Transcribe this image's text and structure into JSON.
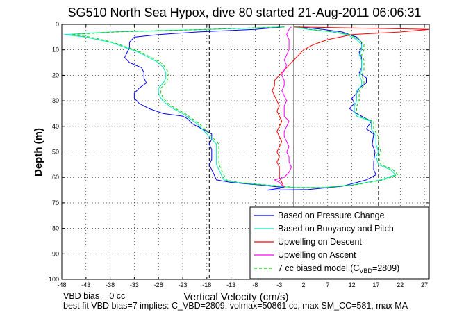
{
  "chart_data": {
    "type": "line",
    "title": "SG510 North Sea Hypox, dive 80 started 21-Aug-2011 06:06:31",
    "xlabel": "Vertical Velocity (cm/s)",
    "ylabel": "Depth (m)",
    "xlim": [
      -48,
      28
    ],
    "ylim": [
      0,
      100
    ],
    "y_reversed": true,
    "grid": true,
    "x_ticks": [
      -48,
      -43,
      -38,
      -33,
      -28,
      -23,
      -18,
      -13,
      -8,
      -3,
      2,
      7,
      12,
      17,
      22,
      27
    ],
    "y_ticks": [
      0,
      10,
      20,
      30,
      40,
      50,
      60,
      70,
      80,
      90,
      100
    ],
    "legend_position": "bottom-right",
    "reference_lines": [
      {
        "x": -17.5,
        "style": "dashed",
        "color": "#000000"
      },
      {
        "x": 0,
        "style": "solid",
        "color": "#000000"
      },
      {
        "x": 17.5,
        "style": "dashed",
        "color": "#000000"
      }
    ],
    "series": [
      {
        "name": "Based on Pressure Change",
        "color": "#0000ff",
        "style": "solid",
        "points": [
          [
            -2,
            1
          ],
          [
            -8,
            2
          ],
          [
            -20,
            3
          ],
          [
            -28,
            4
          ],
          [
            -33,
            5
          ],
          [
            -34,
            7
          ],
          [
            -34,
            9
          ],
          [
            -34.5,
            11
          ],
          [
            -35,
            13
          ],
          [
            -34,
            15
          ],
          [
            -31.5,
            17
          ],
          [
            -31,
            19
          ],
          [
            -31,
            21
          ],
          [
            -30.5,
            23
          ],
          [
            -32,
            25
          ],
          [
            -33,
            27
          ],
          [
            -33,
            29
          ],
          [
            -32,
            31
          ],
          [
            -30,
            33
          ],
          [
            -27,
            35
          ],
          [
            -23,
            36
          ],
          [
            -22,
            37
          ],
          [
            -21.5,
            38
          ],
          [
            -21,
            39
          ],
          [
            -20,
            40
          ],
          [
            -19,
            41
          ],
          [
            -18,
            42
          ],
          [
            -17,
            43
          ],
          [
            -17,
            45
          ],
          [
            -17.5,
            47
          ],
          [
            -17,
            49
          ],
          [
            -17,
            51
          ],
          [
            -17,
            53
          ],
          [
            -17.5,
            55
          ],
          [
            -17,
            57
          ],
          [
            -16.5,
            59
          ],
          [
            -16,
            61
          ],
          [
            -13,
            62
          ],
          [
            -7,
            63
          ],
          [
            -2,
            64
          ],
          [
            -5.5,
            65
          ],
          [
            3,
            64.8
          ],
          [
            10,
            63.5
          ],
          [
            15,
            61
          ],
          [
            17,
            59
          ],
          [
            16.5,
            57
          ],
          [
            16.5,
            54
          ],
          [
            16.8,
            50
          ],
          [
            16.2,
            47
          ],
          [
            16.5,
            43
          ],
          [
            15,
            41
          ],
          [
            16,
            38
          ],
          [
            13,
            35
          ],
          [
            11.5,
            33
          ],
          [
            12.5,
            31
          ],
          [
            12,
            29
          ],
          [
            13,
            27
          ],
          [
            13.5,
            25
          ],
          [
            15,
            23
          ],
          [
            15,
            21
          ],
          [
            13.5,
            19
          ],
          [
            14,
            17
          ],
          [
            14,
            15
          ],
          [
            14,
            13
          ],
          [
            13.5,
            11
          ],
          [
            14,
            9
          ],
          [
            14,
            7
          ],
          [
            13,
            5
          ],
          [
            10,
            3
          ],
          [
            6,
            2
          ],
          [
            1,
            1
          ]
        ]
      },
      {
        "name": "Based on Buoyancy and Pitch",
        "color": "#00e8c0",
        "style": "solid",
        "points": [
          [
            -2,
            1
          ],
          [
            -18,
            2
          ],
          [
            -38,
            3
          ],
          [
            -47.5,
            4
          ],
          [
            -43,
            5
          ],
          [
            -38,
            7
          ],
          [
            -35,
            9
          ],
          [
            -32,
            11
          ],
          [
            -30,
            13
          ],
          [
            -28,
            15
          ],
          [
            -27,
            17
          ],
          [
            -26.5,
            19
          ],
          [
            -26.5,
            21
          ],
          [
            -27,
            23
          ],
          [
            -28,
            25
          ],
          [
            -28,
            27
          ],
          [
            -27.5,
            29
          ],
          [
            -26.5,
            31
          ],
          [
            -25,
            33
          ],
          [
            -23,
            35
          ],
          [
            -21.5,
            37
          ],
          [
            -20,
            39
          ],
          [
            -19,
            41
          ],
          [
            -18,
            43
          ],
          [
            -17,
            45
          ],
          [
            -16,
            47
          ],
          [
            -16,
            49
          ],
          [
            -16,
            51
          ],
          [
            -16,
            53
          ],
          [
            -16,
            55
          ],
          [
            -15.5,
            57
          ],
          [
            -15,
            59
          ],
          [
            -14.5,
            61
          ],
          [
            -12,
            62
          ],
          [
            -6,
            63
          ],
          [
            0,
            64
          ],
          [
            6,
            64
          ],
          [
            12,
            63
          ],
          [
            18,
            61
          ],
          [
            21,
            59
          ],
          [
            20,
            57
          ],
          [
            17.5,
            55
          ],
          [
            17,
            52
          ],
          [
            17.5,
            50
          ],
          [
            17,
            47
          ],
          [
            17,
            44
          ],
          [
            16,
            41
          ],
          [
            16,
            38
          ],
          [
            13,
            36
          ],
          [
            12.5,
            34
          ],
          [
            12.5,
            32
          ],
          [
            13,
            30
          ],
          [
            13,
            28
          ],
          [
            13,
            26
          ],
          [
            14,
            24
          ],
          [
            14,
            22
          ],
          [
            13.5,
            20
          ],
          [
            14,
            18
          ],
          [
            14,
            16
          ],
          [
            14,
            14
          ],
          [
            13.5,
            12
          ],
          [
            14,
            10
          ],
          [
            14,
            8
          ],
          [
            13,
            6
          ],
          [
            11,
            4
          ],
          [
            8,
            3
          ],
          [
            3,
            2
          ],
          [
            0,
            1
          ]
        ]
      },
      {
        "name": "Upwelling on Descent",
        "color": "#ff0000",
        "style": "solid",
        "points": [
          [
            0,
            1
          ],
          [
            28,
            2
          ],
          [
            22,
            3
          ],
          [
            12,
            4
          ],
          [
            7,
            6
          ],
          [
            4,
            8
          ],
          [
            2,
            10
          ],
          [
            1,
            12
          ],
          [
            0,
            14
          ],
          [
            -1,
            16
          ],
          [
            -2,
            18
          ],
          [
            -3,
            20
          ],
          [
            -4,
            22
          ],
          [
            -4,
            24
          ],
          [
            -4.5,
            26
          ],
          [
            -4,
            28
          ],
          [
            -3.5,
            30
          ],
          [
            -3,
            32
          ],
          [
            -3.5,
            34
          ],
          [
            -3,
            36
          ],
          [
            -2.5,
            38
          ],
          [
            -3,
            40
          ],
          [
            -3.5,
            42
          ],
          [
            -3,
            44
          ],
          [
            -2.5,
            46
          ],
          [
            -3,
            48
          ],
          [
            -3.5,
            50
          ],
          [
            -3,
            52
          ],
          [
            -3.5,
            54
          ],
          [
            -3,
            56
          ],
          [
            -3,
            58
          ],
          [
            -3,
            60
          ],
          [
            -2.5,
            62
          ],
          [
            -2,
            64
          ]
        ]
      },
      {
        "name": "Upwelling on Ascent",
        "color": "#ff00ff",
        "style": "solid",
        "points": [
          [
            -2,
            64
          ],
          [
            -3,
            62
          ],
          [
            -4,
            61
          ],
          [
            -2,
            60
          ],
          [
            -1,
            58
          ],
          [
            -0.5,
            56
          ],
          [
            -1,
            54
          ],
          [
            -1,
            52
          ],
          [
            -1.5,
            50
          ],
          [
            -1,
            48
          ],
          [
            -1.5,
            46
          ],
          [
            -2,
            44
          ],
          [
            -2,
            42
          ],
          [
            -1.5,
            40
          ],
          [
            -1,
            38
          ],
          [
            -2,
            36
          ],
          [
            -2,
            34
          ],
          [
            -2,
            32
          ],
          [
            -1.5,
            30
          ],
          [
            -2,
            28
          ],
          [
            -2.5,
            26
          ],
          [
            -2,
            24
          ],
          [
            -2,
            22
          ],
          [
            -2.5,
            20
          ],
          [
            -2,
            18
          ],
          [
            -1.5,
            16
          ],
          [
            -2,
            14
          ],
          [
            -1.5,
            12
          ],
          [
            -1,
            10
          ],
          [
            -1,
            8
          ],
          [
            -1,
            6
          ],
          [
            -1.5,
            4
          ],
          [
            -1,
            2
          ],
          [
            -0.5,
            1
          ]
        ]
      },
      {
        "name": "7 cc biased model (C_VBD=2809)",
        "color": "#00cc00",
        "style": "dashed",
        "points": [
          [
            -2,
            1
          ],
          [
            -18,
            2
          ],
          [
            -37,
            3
          ],
          [
            -46,
            4
          ],
          [
            -42,
            5
          ],
          [
            -37.5,
            7
          ],
          [
            -34.5,
            9
          ],
          [
            -31.5,
            11
          ],
          [
            -29.5,
            13
          ],
          [
            -27.5,
            15
          ],
          [
            -26.5,
            17
          ],
          [
            -26,
            19
          ],
          [
            -26,
            21
          ],
          [
            -26.5,
            23
          ],
          [
            -27.5,
            25
          ],
          [
            -27.5,
            27
          ],
          [
            -27,
            29
          ],
          [
            -26,
            31
          ],
          [
            -24.5,
            33
          ],
          [
            -22.5,
            35
          ],
          [
            -21,
            37
          ],
          [
            -19.5,
            39
          ],
          [
            -18.5,
            41
          ],
          [
            -17.5,
            43
          ],
          [
            -16.5,
            45
          ],
          [
            -15.5,
            47
          ],
          [
            -15.5,
            49
          ],
          [
            -15.5,
            51
          ],
          [
            -15.5,
            53
          ],
          [
            -15.5,
            55
          ],
          [
            -15,
            57
          ],
          [
            -14.5,
            59
          ],
          [
            -14,
            61
          ],
          [
            -11.5,
            62
          ],
          [
            -5.5,
            63
          ],
          [
            0.5,
            64
          ],
          [
            6.5,
            64
          ],
          [
            12.5,
            63
          ],
          [
            18.5,
            61
          ],
          [
            21.5,
            59
          ],
          [
            20.5,
            57
          ],
          [
            18,
            55
          ],
          [
            17.5,
            52
          ],
          [
            18,
            50
          ],
          [
            17.5,
            47
          ],
          [
            17.5,
            44
          ],
          [
            16.5,
            41
          ],
          [
            16.5,
            38
          ],
          [
            13.5,
            36
          ],
          [
            13,
            34
          ],
          [
            13,
            32
          ],
          [
            13.5,
            30
          ],
          [
            13.5,
            28
          ],
          [
            13.5,
            26
          ],
          [
            14.5,
            24
          ],
          [
            14.5,
            22
          ],
          [
            14,
            20
          ],
          [
            14.5,
            18
          ],
          [
            14.5,
            16
          ],
          [
            14.5,
            14
          ],
          [
            14,
            12
          ],
          [
            14.5,
            10
          ],
          [
            14.5,
            8
          ],
          [
            13.5,
            6
          ],
          [
            11.5,
            4
          ],
          [
            8.5,
            3
          ],
          [
            3.5,
            2
          ],
          [
            0.5,
            1
          ]
        ]
      }
    ],
    "legend": [
      "Based on Pressure Change",
      "Based on Buoyancy and Pitch",
      "Upwelling on Descent",
      "Upwelling on Ascent"
    ],
    "legend_model_prefix": "7 cc biased model (C",
    "legend_model_sub": "VBD",
    "legend_model_suffix": "=2809)"
  },
  "footer": {
    "line1": "VBD bias = 0 cc",
    "line2": "best fit VBD bias=7 implies: C_VBD=2809, volmax=50861 cc, max SM_CC=581, max MA"
  }
}
